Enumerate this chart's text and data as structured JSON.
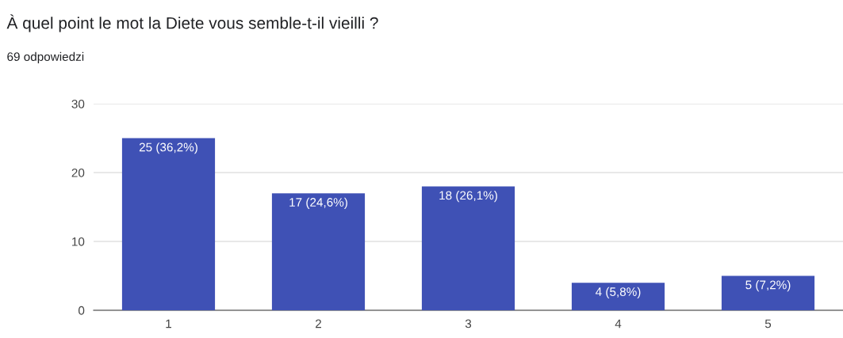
{
  "chart_data": {
    "type": "bar",
    "title": "À quel point le mot la Diete vous semble-t-il vieilli ?",
    "subtitle": "69 odpowiedzi",
    "categories": [
      "1",
      "2",
      "3",
      "4",
      "5"
    ],
    "values": [
      25,
      17,
      18,
      4,
      5
    ],
    "value_labels": [
      "25 (36,2%)",
      "17 (24,6%)",
      "18 (26,1%)",
      "4 (5,8%)",
      "5 (7,2%)"
    ],
    "color": "#3f51b5",
    "ylim": [
      0,
      30
    ],
    "yticks": [
      0,
      10,
      20,
      30
    ],
    "grid": "y"
  }
}
